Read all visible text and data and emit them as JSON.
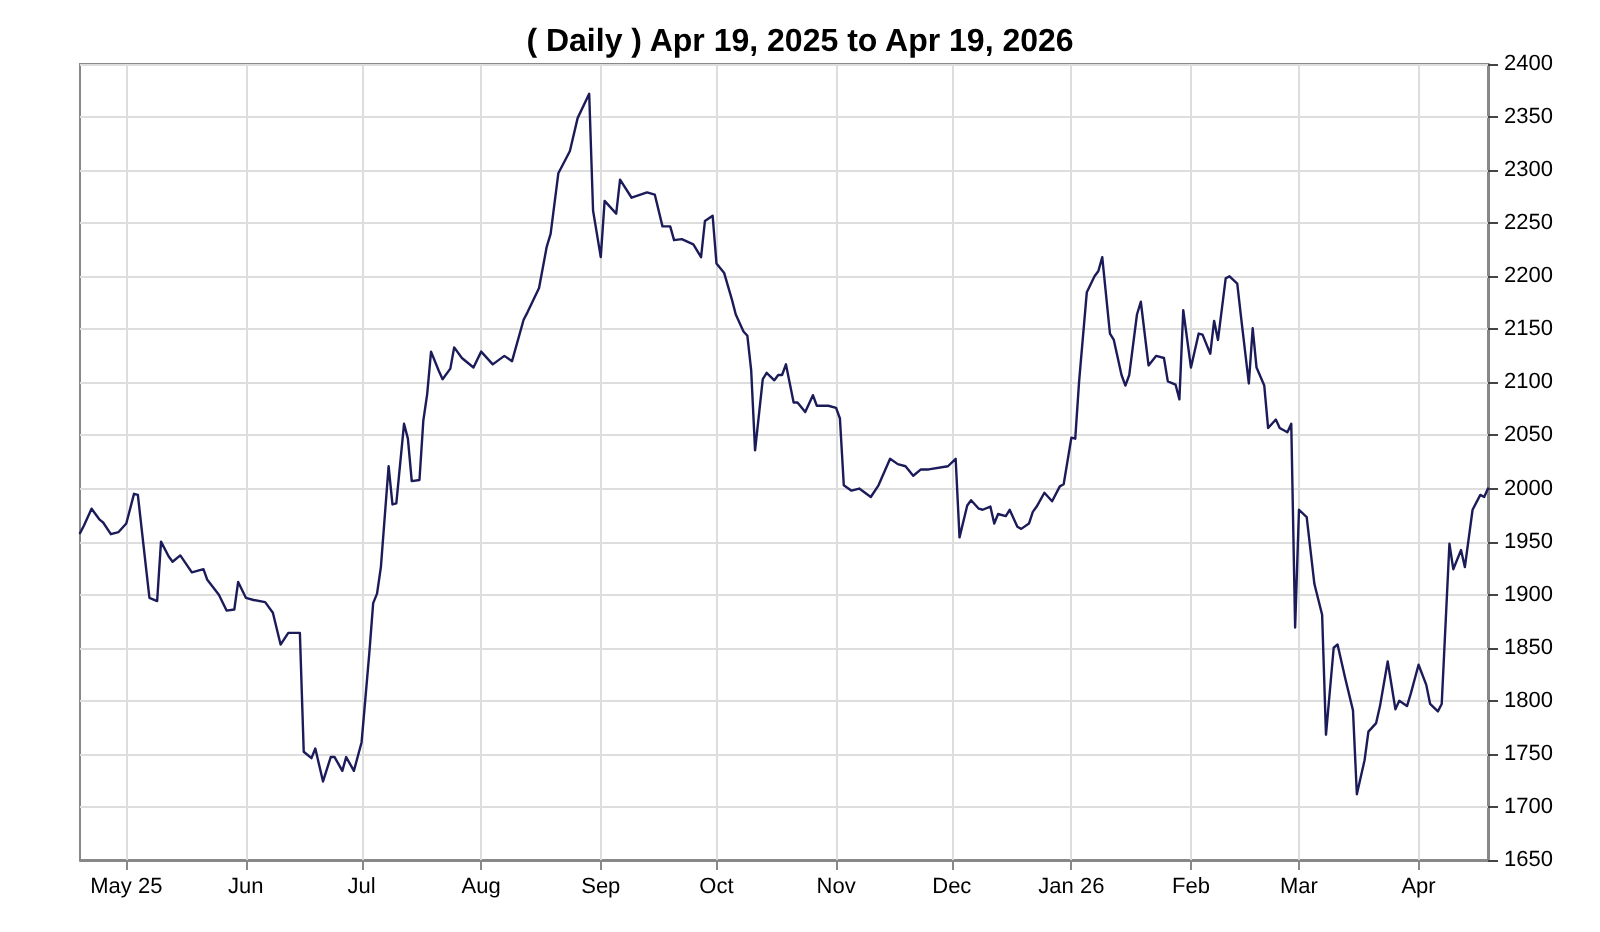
{
  "chart_data": {
    "type": "line",
    "title": "( Daily ) Apr 19, 2025 to Apr 19, 2026",
    "x": [
      "2025-04-19",
      "2025-04-20",
      "2025-04-22",
      "2025-04-24",
      "2025-04-25",
      "2025-04-27",
      "2025-04-29",
      "2025-05-01",
      "2025-05-03",
      "2025-05-04",
      "2025-05-06",
      "2025-05-07",
      "2025-05-09",
      "2025-05-10",
      "2025-05-12",
      "2025-05-13",
      "2025-05-15",
      "2025-05-18",
      "2025-05-21",
      "2025-05-22",
      "2025-05-25",
      "2025-05-27",
      "2025-05-29",
      "2025-05-30",
      "2025-06-01",
      "2025-06-03",
      "2025-06-06",
      "2025-06-08",
      "2025-06-10",
      "2025-06-12",
      "2025-06-15",
      "2025-06-16",
      "2025-06-18",
      "2025-06-19",
      "2025-06-21",
      "2025-06-23",
      "2025-06-24",
      "2025-06-26",
      "2025-06-27",
      "2025-06-29",
      "2025-07-01",
      "2025-07-03",
      "2025-07-04",
      "2025-07-05",
      "2025-07-06",
      "2025-07-08",
      "2025-07-09",
      "2025-07-10",
      "2025-07-12",
      "2025-07-13",
      "2025-07-14",
      "2025-07-16",
      "2025-07-17",
      "2025-07-18",
      "2025-07-19",
      "2025-07-21",
      "2025-07-22",
      "2025-07-24",
      "2025-07-25",
      "2025-07-27",
      "2025-07-30",
      "2025-08-01",
      "2025-08-04",
      "2025-08-07",
      "2025-08-09",
      "2025-08-12",
      "2025-08-13",
      "2025-08-16",
      "2025-08-18",
      "2025-08-19",
      "2025-08-21",
      "2025-08-23",
      "2025-08-24",
      "2025-08-26",
      "2025-08-29",
      "2025-08-30",
      "2025-09-01",
      "2025-09-02",
      "2025-09-05",
      "2025-09-06",
      "2025-09-09",
      "2025-09-13",
      "2025-09-15",
      "2025-09-17",
      "2025-09-19",
      "2025-09-20",
      "2025-09-22",
      "2025-09-25",
      "2025-09-27",
      "2025-09-28",
      "2025-09-30",
      "2025-10-01",
      "2025-10-03",
      "2025-10-05",
      "2025-10-06",
      "2025-10-08",
      "2025-10-09",
      "2025-10-10",
      "2025-10-11",
      "2025-10-13",
      "2025-10-14",
      "2025-10-16",
      "2025-10-17",
      "2025-10-18",
      "2025-10-19",
      "2025-10-21",
      "2025-10-22",
      "2025-10-24",
      "2025-10-26",
      "2025-10-27",
      "2025-10-30",
      "2025-11-01",
      "2025-11-02",
      "2025-11-03",
      "2025-11-05",
      "2025-11-07",
      "2025-11-10",
      "2025-11-12",
      "2025-11-15",
      "2025-11-17",
      "2025-11-19",
      "2025-11-21",
      "2025-11-23",
      "2025-11-25",
      "2025-11-30",
      "2025-12-02",
      "2025-12-03",
      "2025-12-05",
      "2025-12-06",
      "2025-12-08",
      "2025-12-09",
      "2025-12-11",
      "2025-12-12",
      "2025-12-13",
      "2025-12-15",
      "2025-12-16",
      "2025-12-18",
      "2025-12-19",
      "2025-12-21",
      "2025-12-22",
      "2025-12-23",
      "2025-12-25",
      "2025-12-27",
      "2025-12-29",
      "2025-12-30",
      "2026-01-01",
      "2026-01-02",
      "2026-01-03",
      "2026-01-05",
      "2026-01-07",
      "2026-01-08",
      "2026-01-09",
      "2026-01-11",
      "2026-01-12",
      "2026-01-14",
      "2026-01-15",
      "2026-01-16",
      "2026-01-18",
      "2026-01-19",
      "2026-01-21",
      "2026-01-23",
      "2026-01-25",
      "2026-01-26",
      "2026-01-28",
      "2026-01-29",
      "2026-01-30",
      "2026-02-01",
      "2026-02-03",
      "2026-02-04",
      "2026-02-06",
      "2026-02-07",
      "2026-02-08",
      "2026-02-10",
      "2026-02-11",
      "2026-02-13",
      "2026-02-14",
      "2026-02-16",
      "2026-02-17",
      "2026-02-18",
      "2026-02-20",
      "2026-02-21",
      "2026-02-23",
      "2026-02-24",
      "2026-02-26",
      "2026-02-27",
      "2026-02-28",
      "2026-03-01",
      "2026-03-03",
      "2026-03-05",
      "2026-03-07",
      "2026-03-08",
      "2026-03-10",
      "2026-03-11",
      "2026-03-13",
      "2026-03-15",
      "2026-03-16",
      "2026-03-18",
      "2026-03-19",
      "2026-03-21",
      "2026-03-22",
      "2026-03-24",
      "2026-03-26",
      "2026-03-27",
      "2026-03-29",
      "2026-03-30",
      "2026-04-01",
      "2026-04-03",
      "2026-04-04",
      "2026-04-06",
      "2026-04-07",
      "2026-04-09",
      "2026-04-10",
      "2026-04-12",
      "2026-04-13",
      "2026-04-15",
      "2026-04-17",
      "2026-04-18",
      "2026-04-19"
    ],
    "series": [
      {
        "color": "#1b1b5a",
        "values": [
          1958,
          1965,
          1981,
          1971,
          1968,
          1957,
          1959,
          1967,
          1995,
          1994,
          1929,
          1897,
          1894,
          1950,
          1936,
          1931,
          1937,
          1921,
          1924,
          1914,
          1900,
          1885,
          1886,
          1912,
          1897,
          1895,
          1893,
          1883,
          1853,
          1864,
          1864,
          1752,
          1746,
          1755,
          1724,
          1747,
          1747,
          1734,
          1747,
          1734,
          1761,
          1845,
          1892,
          1901,
          1926,
          2021,
          1985,
          1986,
          2061,
          2047,
          2007,
          2008,
          2064,
          2089,
          2129,
          2111,
          2103,
          2113,
          2133,
          2123,
          2114,
          2129,
          2117,
          2125,
          2120,
          2159,
          2166,
          2189,
          2228,
          2240,
          2297,
          2311,
          2318,
          2349,
          2372,
          2262,
          2218,
          2271,
          2259,
          2291,
          2274,
          2279,
          2277,
          2247,
          2247,
          2234,
          2235,
          2230,
          2218,
          2252,
          2257,
          2212,
          2203,
          2178,
          2164,
          2148,
          2144,
          2111,
          2036,
          2103,
          2109,
          2102,
          2107,
          2107,
          2117,
          2081,
          2081,
          2072,
          2088,
          2078,
          2078,
          2076,
          2066,
          2003,
          1998,
          2000,
          1992,
          2003,
          2028,
          2023,
          2021,
          2012,
          2018,
          2018,
          2021,
          2028,
          1954,
          1984,
          1989,
          1981,
          1980,
          1983,
          1967,
          1976,
          1974,
          1980,
          1964,
          1962,
          1967,
          1978,
          1983,
          1996,
          1988,
          2002,
          2004,
          2048,
          2047,
          2101,
          2185,
          2200,
          2205,
          2218,
          2146,
          2140,
          2107,
          2097,
          2107,
          2164,
          2176,
          2116,
          2125,
          2123,
          2101,
          2098,
          2084,
          2168,
          2114,
          2146,
          2145,
          2127,
          2158,
          2140,
          2198,
          2200,
          2193,
          2161,
          2099,
          2151,
          2114,
          2097,
          2057,
          2065,
          2057,
          2053,
          2061,
          1869,
          1980,
          1973,
          1910,
          1881,
          1768,
          1850,
          1853,
          1821,
          1791,
          1712,
          1744,
          1771,
          1779,
          1795,
          1837,
          1792,
          1800,
          1795,
          1807,
          1834,
          1815,
          1797,
          1790,
          1797,
          1948,
          1924,
          1942,
          1926,
          1980,
          1994,
          1992,
          2000
        ]
      }
    ],
    "xlim": [
      "2025-04-19",
      "2026-04-19"
    ],
    "xticks": [
      {
        "value": "2025-05-01",
        "label": "May 25"
      },
      {
        "value": "2025-06-01",
        "label": "Jun"
      },
      {
        "value": "2025-07-01",
        "label": "Jul"
      },
      {
        "value": "2025-08-01",
        "label": "Aug"
      },
      {
        "value": "2025-09-01",
        "label": "Sep"
      },
      {
        "value": "2025-10-01",
        "label": "Oct"
      },
      {
        "value": "2025-11-01",
        "label": "Nov"
      },
      {
        "value": "2025-12-01",
        "label": "Dec"
      },
      {
        "value": "2026-01-01",
        "label": "Jan 26"
      },
      {
        "value": "2026-02-01",
        "label": "Feb"
      },
      {
        "value": "2026-03-01",
        "label": "Mar"
      },
      {
        "value": "2026-04-01",
        "label": "Apr"
      }
    ],
    "ylim": [
      1650,
      2400
    ],
    "yticks": [
      1650,
      1700,
      1750,
      1800,
      1850,
      1900,
      1950,
      2000,
      2050,
      2100,
      2150,
      2200,
      2250,
      2300,
      2350,
      2400
    ],
    "grid": true,
    "marker": "none",
    "line_style": "solid"
  }
}
